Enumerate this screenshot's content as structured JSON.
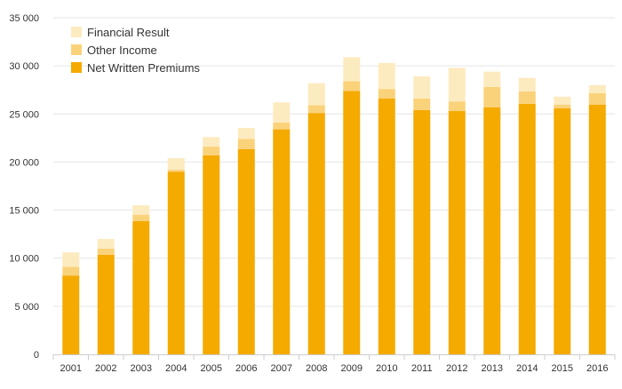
{
  "chart_data": {
    "type": "bar",
    "stacked": true,
    "categories": [
      "2001",
      "2002",
      "2003",
      "2004",
      "2005",
      "2006",
      "2007",
      "2008",
      "2009",
      "2010",
      "2011",
      "2012",
      "2013",
      "2014",
      "2015",
      "2016"
    ],
    "series": [
      {
        "name": "Net Written Premiums",
        "color": "#F5AA00",
        "values": [
          8200,
          10350,
          13850,
          19000,
          20700,
          21350,
          23400,
          25100,
          27400,
          26600,
          25400,
          25300,
          25700,
          26050,
          25600,
          25950
        ]
      },
      {
        "name": "Other Income",
        "color": "#FAD27A",
        "values": [
          900,
          650,
          650,
          200,
          900,
          1050,
          700,
          800,
          1000,
          1000,
          1200,
          1000,
          2100,
          1300,
          350,
          1200
        ]
      },
      {
        "name": "Financial Result",
        "color": "#FDEBC0",
        "values": [
          1500,
          1000,
          1000,
          1200,
          1000,
          1150,
          2100,
          2300,
          2500,
          2700,
          2300,
          3500,
          1600,
          1400,
          850,
          850
        ]
      }
    ],
    "ylim": [
      0,
      35000
    ],
    "yticks": [
      0,
      5000,
      10000,
      15000,
      20000,
      25000,
      30000,
      35000
    ],
    "ytick_labels": [
      "0",
      "5 000",
      "10 000",
      "15 000",
      "20 000",
      "25 000",
      "30 000",
      "35 000"
    ],
    "grid": true,
    "legend_position": "top-left",
    "legend_order": [
      "Financial Result",
      "Other Income",
      "Net Written Premiums"
    ]
  }
}
